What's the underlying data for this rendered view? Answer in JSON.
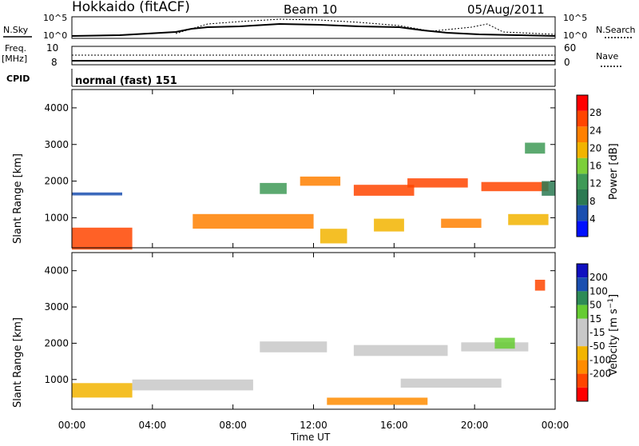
{
  "header": {
    "station": "Hokkaido (fitACF)",
    "beam": "Beam 10",
    "date": "05/Aug/2011"
  },
  "noise_panel": {
    "left_label": "N.Sky",
    "right_label": "N.Search",
    "left_ticks": [
      "10^5",
      "10^0"
    ],
    "right_ticks": [
      "10^5",
      "10^0"
    ]
  },
  "freq_panel": {
    "left_label_1": "Freq.",
    "left_label_2": "[MHz]",
    "left_ticks": [
      "10",
      "8"
    ],
    "right_ticks": [
      "60",
      "0"
    ],
    "right_label": "Nave"
  },
  "cpid_panel": {
    "label": "CPID",
    "value": "normal (fast) 151"
  },
  "colors": {
    "power_scale": [
      "#0010ff",
      "#1a4fb0",
      "#2c7a52",
      "#3f9a57",
      "#7ccf3a",
      "#f2b400",
      "#ff8000",
      "#ff4500",
      "#ff0000"
    ],
    "velocity_scale": [
      "#ff0000",
      "#ff4500",
      "#ff8c00",
      "#f2b400",
      "#c8c8c8",
      "#c8c8c8",
      "#66cc33",
      "#2e8b57",
      "#1a4fb0",
      "#1010c0"
    ]
  },
  "chart_data": [
    {
      "type": "heatmap",
      "panel": "power",
      "ylabel": "Slant Range [km]",
      "yticks": [
        1000,
        2000,
        3000,
        4000
      ],
      "ylim": [
        180,
        4500
      ],
      "colorbar_label": "Power [dB]",
      "colorbar_ticks": [
        "4",
        "8",
        "12",
        "16",
        "20",
        "24",
        "28"
      ],
      "cells": [
        {
          "x": 0,
          "y": 430,
          "v": 26,
          "w": 180,
          "h": 600
        },
        {
          "x": 0,
          "y": 1650,
          "v": 6,
          "w": 150,
          "h": 80
        },
        {
          "x": 360,
          "y": 900,
          "v": 24,
          "w": 360,
          "h": 400
        },
        {
          "x": 560,
          "y": 1800,
          "v": 14,
          "w": 80,
          "h": 300
        },
        {
          "x": 680,
          "y": 2000,
          "v": 22,
          "w": 120,
          "h": 250
        },
        {
          "x": 740,
          "y": 500,
          "v": 20,
          "w": 80,
          "h": 400
        },
        {
          "x": 840,
          "y": 1750,
          "v": 26,
          "w": 180,
          "h": 300
        },
        {
          "x": 900,
          "y": 800,
          "v": 20,
          "w": 90,
          "h": 350
        },
        {
          "x": 1000,
          "y": 1950,
          "v": 26,
          "w": 180,
          "h": 250
        },
        {
          "x": 1100,
          "y": 850,
          "v": 22,
          "w": 120,
          "h": 250
        },
        {
          "x": 1220,
          "y": 1850,
          "v": 26,
          "w": 200,
          "h": 250
        },
        {
          "x": 1300,
          "y": 950,
          "v": 20,
          "w": 120,
          "h": 300
        },
        {
          "x": 1350,
          "y": 2900,
          "v": 12,
          "w": 60,
          "h": 300
        },
        {
          "x": 1400,
          "y": 1800,
          "v": 10,
          "w": 40,
          "h": 400
        }
      ]
    },
    {
      "type": "heatmap",
      "panel": "velocity",
      "ylabel": "Slant Range [km]",
      "yticks": [
        1000,
        2000,
        3000,
        4000
      ],
      "ylim": [
        180,
        4500
      ],
      "colorbar_label": "Velocity [m s^-1]",
      "colorbar_ticks": [
        "200",
        "100",
        "50",
        "15",
        "-15",
        "-50",
        "-100",
        "-200"
      ],
      "cells": [
        {
          "x": 0,
          "y": 700,
          "v": -40,
          "w": 180,
          "h": 400
        },
        {
          "x": 180,
          "y": 850,
          "v": 0,
          "w": 360,
          "h": 300
        },
        {
          "x": 560,
          "y": 1900,
          "v": 0,
          "w": 200,
          "h": 300
        },
        {
          "x": 760,
          "y": 400,
          "v": -60,
          "w": 300,
          "h": 200
        },
        {
          "x": 840,
          "y": 1800,
          "v": 0,
          "w": 280,
          "h": 300
        },
        {
          "x": 980,
          "y": 900,
          "v": 0,
          "w": 300,
          "h": 250
        },
        {
          "x": 1160,
          "y": 1900,
          "v": 0,
          "w": 200,
          "h": 250
        },
        {
          "x": 1260,
          "y": 2000,
          "v": 40,
          "w": 60,
          "h": 300
        },
        {
          "x": 1380,
          "y": 3600,
          "v": -120,
          "w": 30,
          "h": 300
        }
      ]
    }
  ],
  "x_axis": {
    "label": "Time UT",
    "ticks": [
      "00:00",
      "04:00",
      "08:00",
      "12:00",
      "16:00",
      "20:00",
      "00:00"
    ]
  }
}
